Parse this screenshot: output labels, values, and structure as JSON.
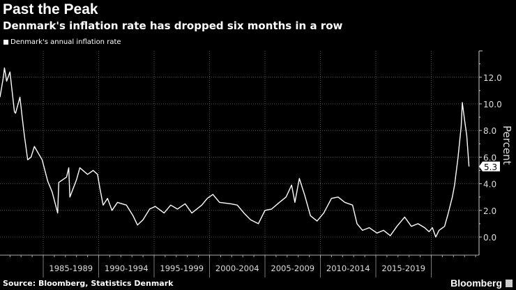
{
  "title": "Past the Peak",
  "subtitle": "Denmark's inflation rate has dropped six months in a row",
  "source": "Source: Bloomberg, Statistics Denmark",
  "brand": "Bloomberg",
  "chart_data": {
    "type": "line",
    "ylabel": "Percent",
    "ylim": [
      -1.3,
      14
    ],
    "yticks": [
      "0.0",
      "2.0",
      "4.0",
      "6.0",
      "8.0",
      "10.0",
      "12.0"
    ],
    "xlim": [
      1981.1,
      2024.4
    ],
    "categories": [
      "1985-1989",
      "1990-1994",
      "1995-1999",
      "2000-2004",
      "2005-2009",
      "2010-2014",
      "2015-2019"
    ],
    "grid": true,
    "legend_position": "top-left",
    "last_value_label": "5.3",
    "line_color": "#ffffff",
    "series": [
      {
        "name": "Denmark's annual inflation rate",
        "x": [
          1981.1,
          1981.4,
          1981.5,
          1981.7,
          1982.0,
          1982.4,
          1982.5,
          1982.9,
          1983.1,
          1983.3,
          1983.6,
          1983.9,
          1984.2,
          1984.9,
          1985.4,
          1985.8,
          1986.3,
          1986.4,
          1987.1,
          1987.3,
          1987.4,
          1988.0,
          1988.3,
          1989.0,
          1989.5,
          1989.9,
          1990.1,
          1990.4,
          1990.8,
          1991.2,
          1991.7,
          1992.1,
          1992.5,
          1993.1,
          1993.5,
          1994.0,
          1994.6,
          1995.1,
          1995.9,
          1996.5,
          1997.1,
          1997.8,
          1998.4,
          1999.3,
          1999.8,
          2000.3,
          2000.9,
          2001.9,
          2002.5,
          2003.1,
          2003.7,
          2004.4,
          2005.0,
          2005.6,
          2006.3,
          2006.9,
          2007.4,
          2007.7,
          2008.1,
          2008.6,
          2009.1,
          2009.7,
          2010.3,
          2011.0,
          2011.6,
          2012.2,
          2012.9,
          2013.3,
          2013.8,
          2014.4,
          2015.1,
          2015.7,
          2016.3,
          2016.9,
          2017.6,
          2018.2,
          2018.8,
          2019.4,
          2019.8,
          2020.1,
          2020.4,
          2020.7,
          2021.2,
          2021.5,
          2021.9,
          2022.1,
          2022.4,
          2022.7,
          2022.8,
          2023.0,
          2023.2,
          2023.4
        ],
        "y": [
          10.5,
          12.0,
          12.7,
          11.7,
          12.4,
          9.4,
          9.3,
          10.5,
          9.0,
          7.6,
          5.8,
          6.0,
          6.8,
          5.8,
          4.2,
          3.4,
          1.8,
          4.1,
          4.5,
          5.2,
          3.0,
          4.3,
          5.2,
          4.7,
          5.0,
          4.7,
          3.7,
          2.4,
          2.9,
          2.0,
          2.6,
          2.5,
          2.4,
          1.6,
          0.9,
          1.3,
          2.1,
          2.3,
          1.8,
          2.4,
          2.1,
          2.5,
          1.8,
          2.4,
          2.9,
          3.2,
          2.6,
          2.5,
          2.4,
          1.8,
          1.3,
          1.0,
          2.0,
          2.1,
          2.6,
          3.0,
          3.9,
          2.6,
          4.4,
          3.1,
          1.6,
          1.2,
          1.8,
          2.9,
          3.0,
          2.6,
          2.4,
          1.0,
          0.5,
          0.7,
          0.3,
          0.5,
          0.1,
          0.8,
          1.5,
          0.8,
          1.0,
          0.7,
          0.4,
          0.7,
          0.0,
          0.5,
          0.8,
          1.7,
          3.0,
          3.9,
          5.9,
          8.3,
          10.1,
          8.8,
          7.6,
          5.3
        ]
      }
    ]
  }
}
